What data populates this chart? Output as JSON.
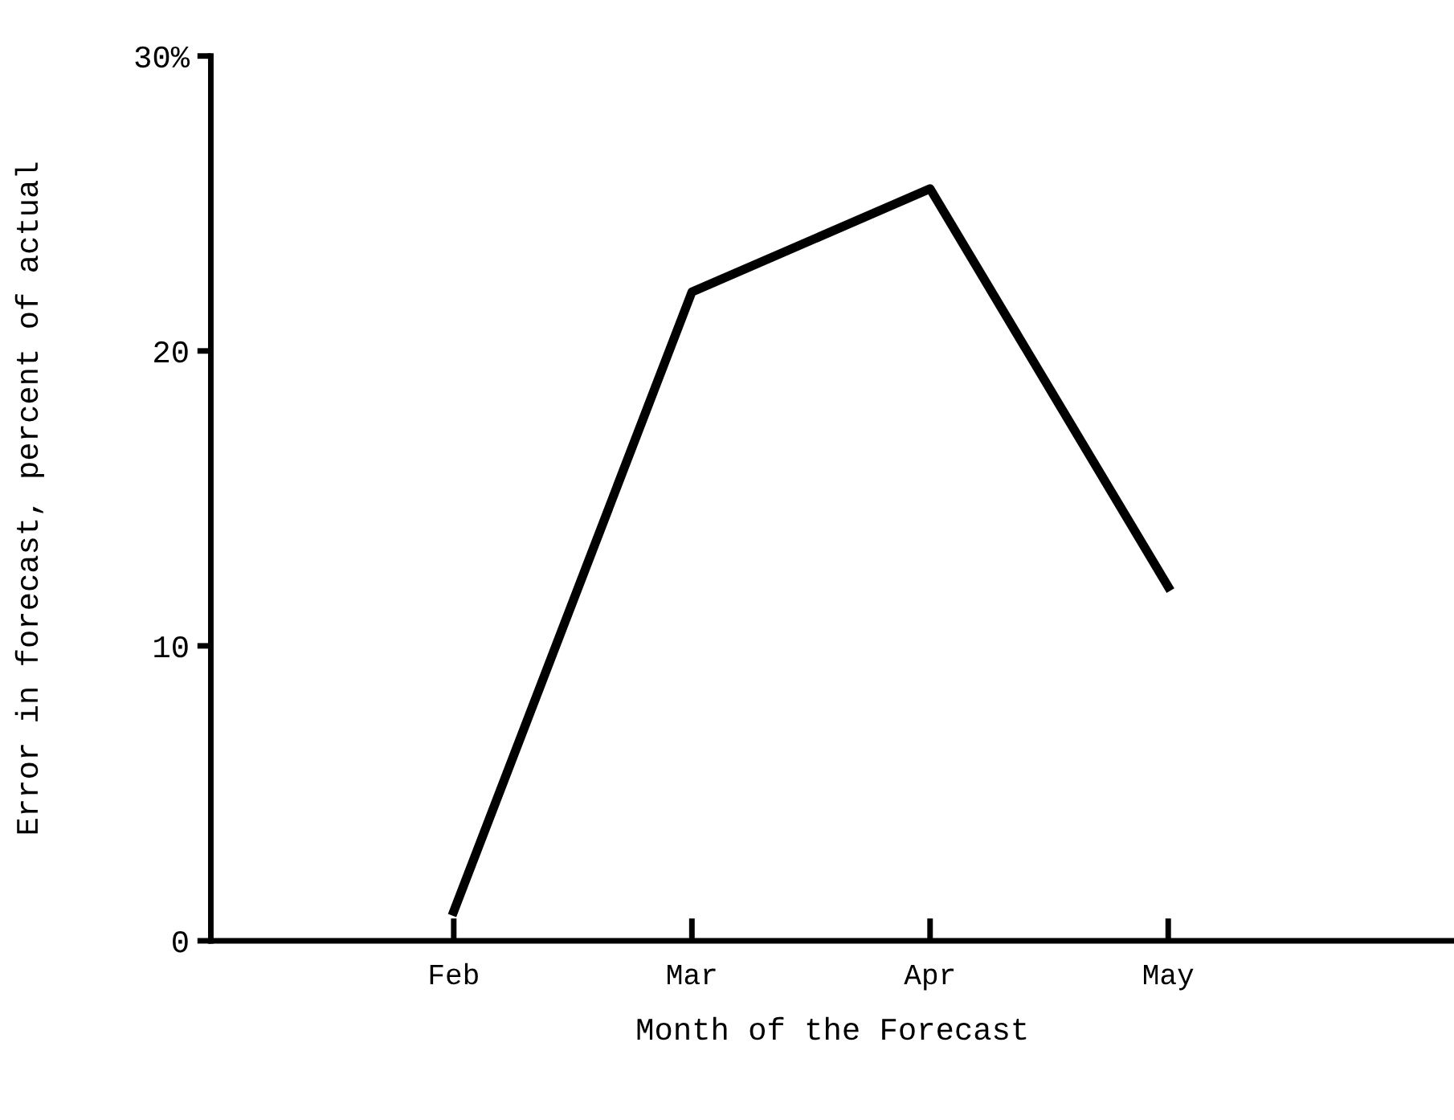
{
  "chart_data": {
    "type": "line",
    "xlabel": "Month of the Forecast",
    "ylabel": "Error in forecast, percent of actual",
    "categories": [
      "Feb",
      "Mar",
      "Apr",
      "May"
    ],
    "series": [
      {
        "color": "#000000",
        "values": [
          1,
          22,
          25.5,
          12
        ]
      }
    ],
    "ylim": [
      0,
      30
    ],
    "yticks": [
      0,
      10,
      20,
      {
        "value": 30,
        "label": "30%"
      }
    ],
    "marker": "none",
    "line_style": "solid"
  }
}
